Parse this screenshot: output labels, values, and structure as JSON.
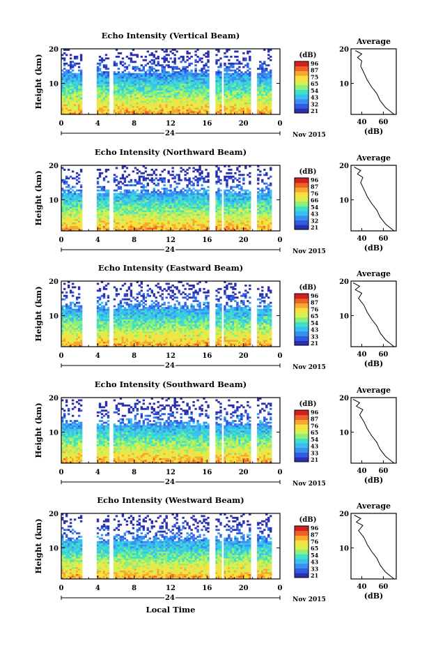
{
  "chart_data": {
    "type": "heatmap",
    "panels": [
      {
        "title": "Echo Intensity (Vertical Beam)",
        "colorbar_ticks": [
          "96",
          "87",
          "75",
          "65",
          "54",
          "43",
          "32",
          "21"
        ],
        "avg_profile": [
          [
            70,
            1
          ],
          [
            62,
            3
          ],
          [
            57,
            5
          ],
          [
            54,
            7
          ],
          [
            49,
            9
          ],
          [
            45,
            11
          ],
          [
            42,
            13
          ],
          [
            39,
            15
          ],
          [
            40,
            16.5
          ],
          [
            36,
            17.5
          ],
          [
            40,
            18.5
          ],
          [
            34,
            19.5
          ]
        ]
      },
      {
        "title": "Echo Intensity (Northward Beam)",
        "colorbar_ticks": [
          "96",
          "87",
          "76",
          "66",
          "54",
          "43",
          "32",
          "21"
        ],
        "avg_profile": [
          [
            70,
            1
          ],
          [
            62,
            3
          ],
          [
            57,
            5
          ],
          [
            54,
            7
          ],
          [
            49,
            9
          ],
          [
            45,
            11
          ],
          [
            42,
            13
          ],
          [
            39,
            15
          ],
          [
            41,
            16.5
          ],
          [
            36,
            17.5
          ],
          [
            39,
            18.5
          ],
          [
            33,
            19.5
          ]
        ]
      },
      {
        "title": "Echo Intensity (Eastward Beam)",
        "colorbar_ticks": [
          "96",
          "87",
          "76",
          "65",
          "54",
          "43",
          "33",
          "21"
        ],
        "avg_profile": [
          [
            70,
            1
          ],
          [
            62,
            3
          ],
          [
            57,
            5
          ],
          [
            54,
            7
          ],
          [
            49,
            9
          ],
          [
            45,
            11
          ],
          [
            42,
            13
          ],
          [
            37,
            15
          ],
          [
            40,
            16.5
          ],
          [
            34,
            17.5
          ],
          [
            38,
            18.5
          ],
          [
            32,
            19.5
          ]
        ]
      },
      {
        "title": "Echo Intensity (Southward Beam)",
        "colorbar_ticks": [
          "96",
          "87",
          "76",
          "65",
          "54",
          "43",
          "33",
          "21"
        ],
        "avg_profile": [
          [
            70,
            1
          ],
          [
            62,
            3
          ],
          [
            57,
            5
          ],
          [
            54,
            7
          ],
          [
            49,
            9
          ],
          [
            45,
            11
          ],
          [
            42,
            13
          ],
          [
            38,
            15
          ],
          [
            41,
            16.5
          ],
          [
            35,
            17.5
          ],
          [
            38,
            18.5
          ],
          [
            32,
            19.5
          ]
        ]
      },
      {
        "title": "Echo Intensity (Westward Beam)",
        "colorbar_ticks": [
          "96",
          "87",
          "76",
          "65",
          "54",
          "43",
          "33",
          "21"
        ],
        "avg_profile": [
          [
            70,
            1
          ],
          [
            62,
            3
          ],
          [
            57,
            5
          ],
          [
            54,
            7
          ],
          [
            49,
            9
          ],
          [
            45,
            11
          ],
          [
            42,
            13
          ],
          [
            37,
            15
          ],
          [
            41,
            16.5
          ],
          [
            35,
            17.5
          ],
          [
            39,
            18.5
          ],
          [
            33,
            19.5
          ]
        ]
      }
    ],
    "x_ticks": [
      "0",
      "4",
      "8",
      "12",
      "16",
      "20",
      "0"
    ],
    "x_range": [
      0,
      24
    ],
    "y_ticks": [
      "20",
      "10"
    ],
    "y_range": [
      1,
      20
    ],
    "ylabel": "Height (km)",
    "date_label": "24",
    "month_year": "Nov 2015",
    "xlabel": "Local Time",
    "colorbar_unit": "(dB)",
    "avg_title": "Average",
    "avg_xlabel": "(dB)",
    "avg_x_ticks": [
      "40",
      "60"
    ],
    "avg_xlim": [
      30,
      72
    ],
    "data_gaps_hours": [
      [
        2.3,
        3.9
      ],
      [
        5.3,
        5.6
      ],
      [
        16.2,
        17.0
      ],
      [
        17.5,
        17.9
      ],
      [
        20.9,
        21.4
      ],
      [
        23.0,
        23.2
      ],
      [
        23.4,
        24
      ]
    ],
    "colorscale": [
      "#2a2fb0",
      "#2f5ce0",
      "#3a8ef0",
      "#39c0f0",
      "#3fe0c8",
      "#8cf07a",
      "#d8f050",
      "#f8e040",
      "#f8a830",
      "#f06028",
      "#d02020"
    ]
  }
}
